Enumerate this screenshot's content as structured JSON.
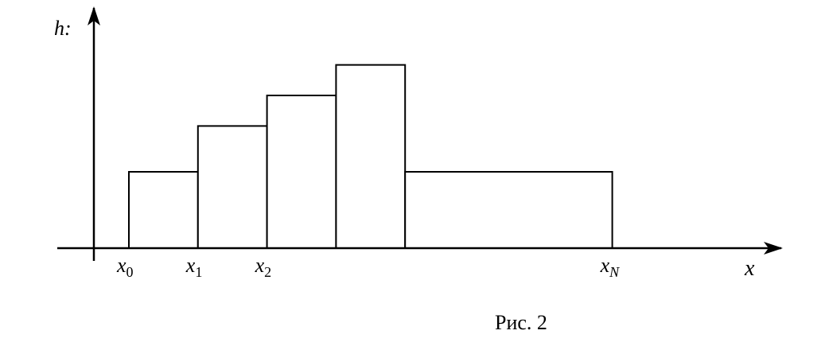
{
  "chart_data": {
    "type": "bar",
    "title": "",
    "ylabel": "h:",
    "xlabel": "x",
    "x_tick_labels": [
      {
        "base": "x",
        "sub": "0",
        "at": 0
      },
      {
        "base": "x",
        "sub": "1",
        "at": 1
      },
      {
        "base": "x",
        "sub": "2",
        "at": 2
      },
      {
        "base": "x",
        "sub": "N",
        "at": 7
      }
    ],
    "bins": [
      {
        "x0": 0,
        "x1": 1,
        "h": 1.0
      },
      {
        "x0": 1,
        "x1": 2,
        "h": 1.6
      },
      {
        "x0": 2,
        "x1": 3,
        "h": 2.0
      },
      {
        "x0": 3,
        "x1": 4,
        "h": 2.4
      },
      {
        "x0": 4,
        "x1": 7,
        "h": 1.0
      }
    ],
    "xlim": [
      -0.5,
      10
    ],
    "ylim": [
      0,
      3.1
    ],
    "grid": false
  },
  "caption": "Рис. 2"
}
